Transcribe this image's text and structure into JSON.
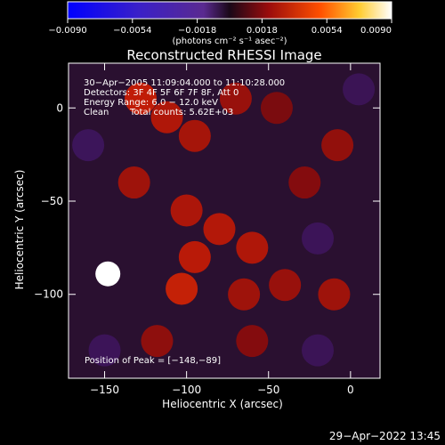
{
  "colorbar": {
    "ticks": [
      "−0.0090",
      "−0.0054",
      "−0.0018",
      "0.0018",
      "0.0054",
      "0.0090"
    ],
    "range": [
      -0.009,
      0.009
    ],
    "units_label": "(photons cm⁻² s⁻¹ asec⁻²)"
  },
  "chart_data": {
    "type": "heatmap",
    "title": "Reconstructed RHESSI Image",
    "xlabel": "Heliocentric X (arcsec)",
    "ylabel": "Heliocentric Y (arcsec)",
    "xlim": [
      -172,
      18
    ],
    "ylim": [
      -145,
      24
    ],
    "x_ticks": [
      -150,
      -100,
      -50,
      0
    ],
    "x_tick_labels": [
      "−150",
      "−100",
      "−50",
      "0"
    ],
    "y_ticks": [
      0,
      -50,
      -100
    ],
    "y_tick_labels": [
      "0",
      "−50",
      "−100"
    ],
    "grid": false,
    "colormap": "purple-black-red-yellow-white",
    "peak": {
      "x": -148,
      "y": -89
    },
    "annotations": [
      "30−Apr−2005 11:09:04.000 to 11:10:28.000",
      "Detectors: 3F 4F 5F 6F 7F 8F, Att 0",
      "Energy Range: 6.0 − 12.0 keV",
      "Clean",
      "Total counts: 5.62E+03",
      "Position of Peak = [−148,−89]"
    ],
    "blobs": [
      {
        "x": -148,
        "y": -89,
        "value": 0.009
      },
      {
        "x": -128,
        "y": 5,
        "value": 0.004
      },
      {
        "x": -112,
        "y": -5,
        "value": 0.0035
      },
      {
        "x": -95,
        "y": -15,
        "value": 0.0032
      },
      {
        "x": -70,
        "y": 5,
        "value": 0.0028
      },
      {
        "x": -132,
        "y": -40,
        "value": 0.003
      },
      {
        "x": -100,
        "y": -55,
        "value": 0.0034
      },
      {
        "x": -80,
        "y": -65,
        "value": 0.0036
      },
      {
        "x": -60,
        "y": -75,
        "value": 0.0035
      },
      {
        "x": -95,
        "y": -80,
        "value": 0.0038
      },
      {
        "x": -103,
        "y": -97,
        "value": 0.0042
      },
      {
        "x": -65,
        "y": -100,
        "value": 0.003
      },
      {
        "x": -40,
        "y": -95,
        "value": 0.0028
      },
      {
        "x": -10,
        "y": -100,
        "value": 0.003
      },
      {
        "x": -8,
        "y": -20,
        "value": 0.0026
      },
      {
        "x": -28,
        "y": -40,
        "value": 0.0022
      },
      {
        "x": -45,
        "y": 0,
        "value": 0.002
      },
      {
        "x": -118,
        "y": -125,
        "value": 0.0025
      },
      {
        "x": -60,
        "y": -125,
        "value": 0.0022
      },
      {
        "x": -160,
        "y": -20,
        "value": -0.0015
      },
      {
        "x": -20,
        "y": -70,
        "value": -0.0012
      },
      {
        "x": 5,
        "y": 10,
        "value": -0.001
      },
      {
        "x": -150,
        "y": -130,
        "value": -0.0012
      },
      {
        "x": -20,
        "y": -130,
        "value": -0.0011
      }
    ]
  },
  "footer": {
    "timestamp": "29−Apr−2022 13:45"
  }
}
